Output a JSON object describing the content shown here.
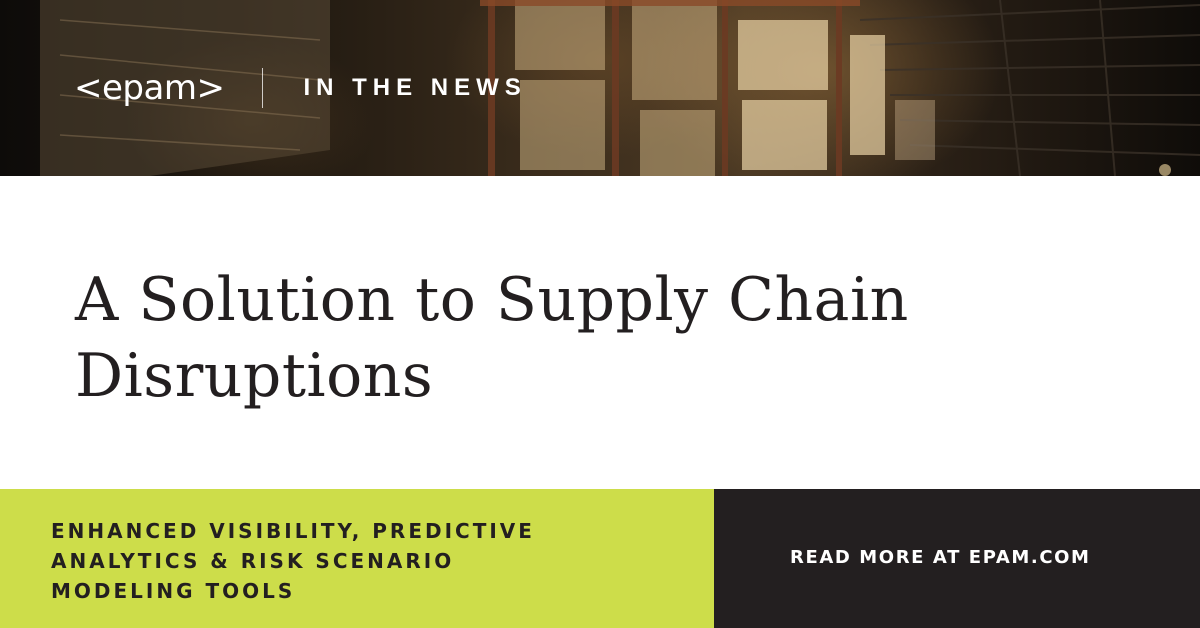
{
  "header": {
    "logo_text": "<epam>",
    "tag": "IN THE NEWS",
    "background_image": "warehouse-shelves-photo"
  },
  "main": {
    "headline_line1": "A Solution to Supply Chain",
    "headline_line2": "Disruptions"
  },
  "footer": {
    "subline1": "ENHANCED VISIBILITY, PREDICTIVE",
    "subline2": "ANALYTICS & RISK SCENARIO",
    "subline3": "MODELING TOOLS",
    "cta": "READ MORE AT EPAM.COM"
  },
  "colors": {
    "accent_green": "#cddd4a",
    "dark": "#231f20",
    "text": "#231f20",
    "white": "#ffffff"
  }
}
